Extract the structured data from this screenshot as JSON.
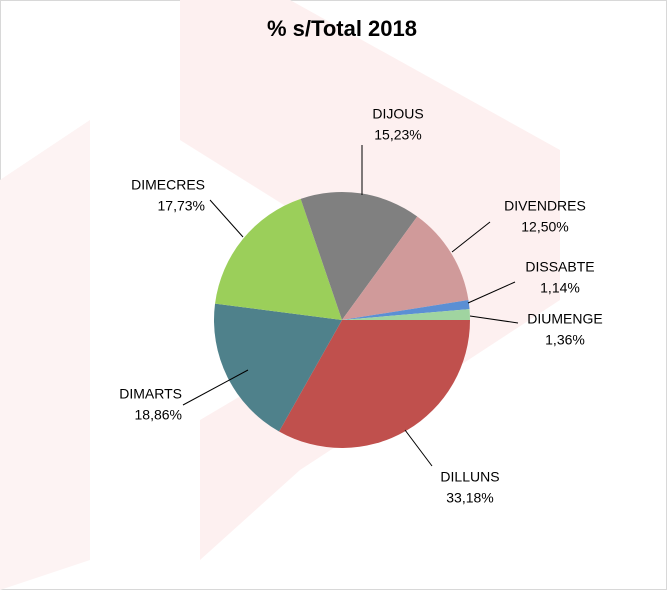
{
  "chart_data": {
    "type": "pie",
    "title": "% s/Total 2018",
    "categories": [
      "DILLUNS",
      "DIMARTS",
      "DIMECRES",
      "DIJOUS",
      "DIVENDRES",
      "DISSABTE",
      "DIUMENGE"
    ],
    "values": [
      33.18,
      18.86,
      17.73,
      15.23,
      12.5,
      1.14,
      1.36
    ],
    "value_labels": [
      "33,18%",
      "18,86%",
      "17,73%",
      "15,23%",
      "12,50%",
      "1,14%",
      "1,36%"
    ],
    "colors": [
      "#c0504d",
      "#4f818b",
      "#9bcf5a",
      "#808080",
      "#d09a9a",
      "#5b8fd4",
      "#a0d4a0"
    ]
  }
}
